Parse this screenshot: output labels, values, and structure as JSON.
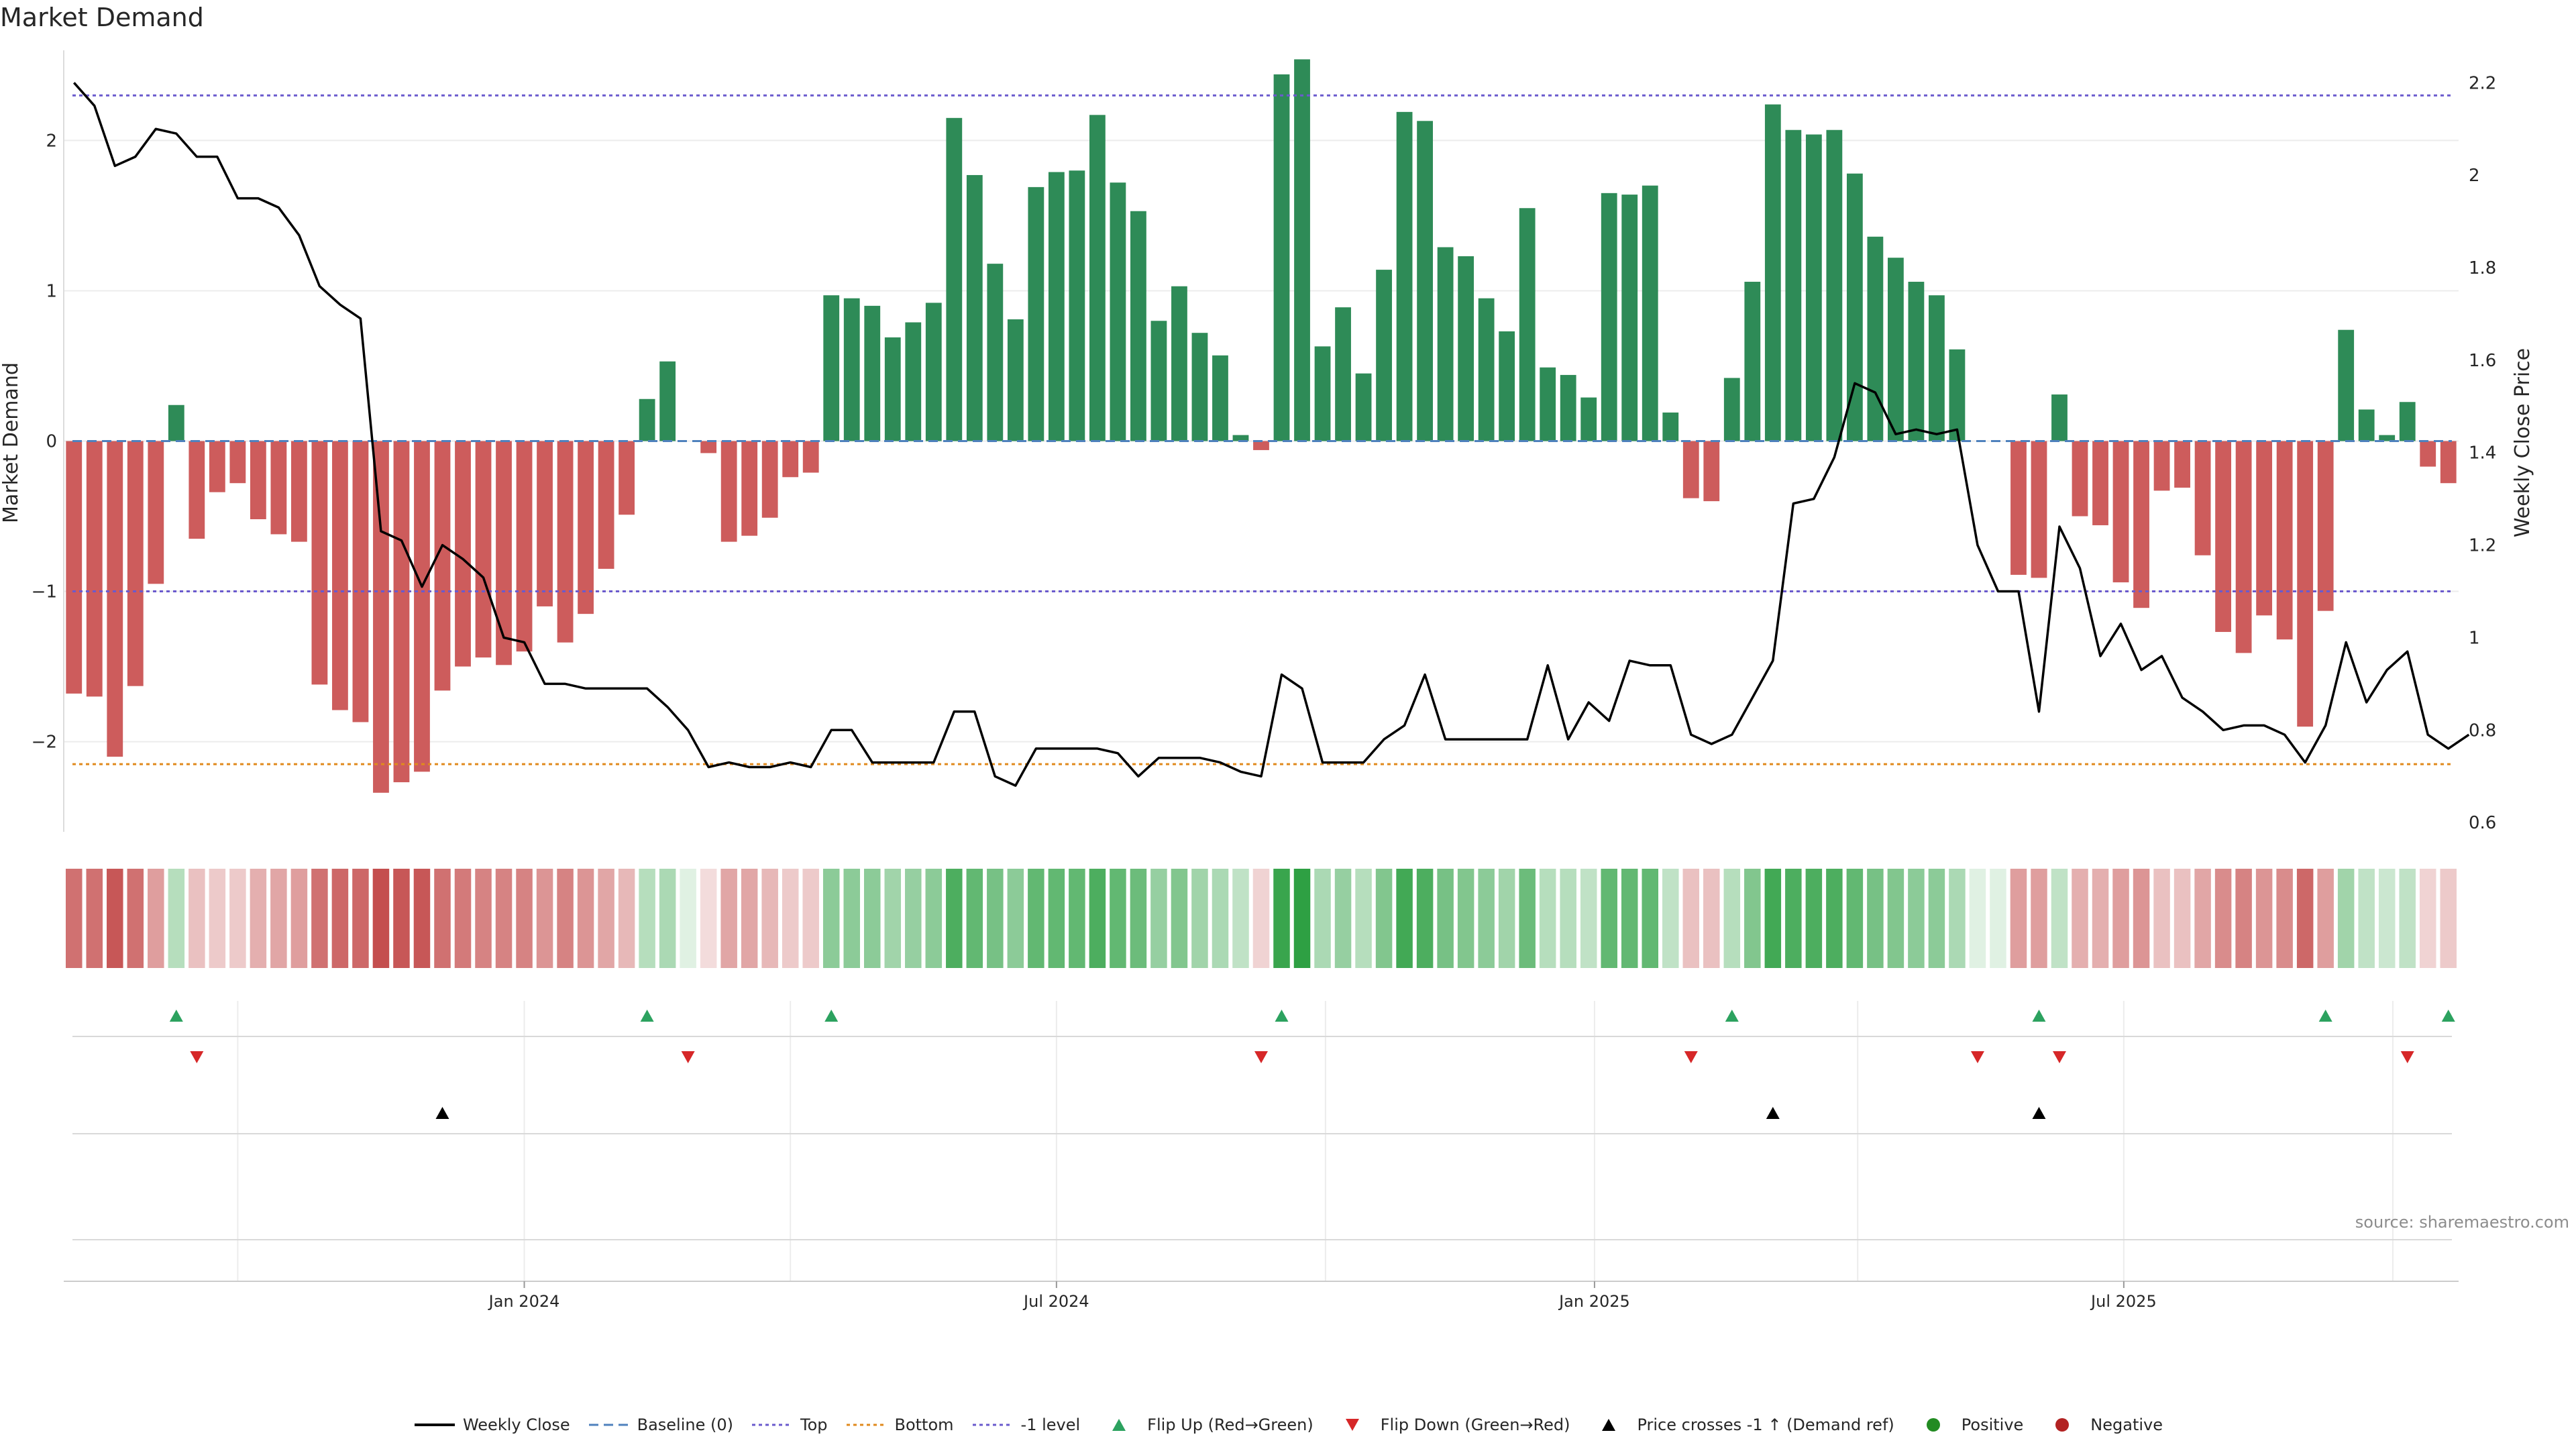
{
  "title": "Market Demand",
  "source": "source: sharemaestro.com",
  "colors": {
    "positive": "#2e8b57",
    "negative": "#cd5c5c",
    "price": "#000000",
    "baseline": "#4f81bd",
    "top": "#6a5acd",
    "bottom": "#e08a1e",
    "minus_one": "#6a5acd",
    "flip_up": "#2ca25f",
    "flip_down": "#d62728",
    "cross": "#000000",
    "positive_dot": "#228b22",
    "negative_dot": "#b22222"
  },
  "legend": [
    {
      "label": "Weekly Close",
      "symbol": "line",
      "color": "#000000"
    },
    {
      "label": "Baseline (0)",
      "symbol": "dash",
      "color": "#4f81bd"
    },
    {
      "label": "Top",
      "symbol": "dot",
      "color": "#6a5acd"
    },
    {
      "label": "Bottom",
      "symbol": "dot",
      "color": "#e08a1e"
    },
    {
      "label": "-1 level",
      "symbol": "dot",
      "color": "#6a5acd"
    },
    {
      "label": "Flip Up (Red→Green)",
      "symbol": "tri-up",
      "color": "#2ca25f"
    },
    {
      "label": "Flip Down (Green→Red)",
      "symbol": "tri-down",
      "color": "#d62728"
    },
    {
      "label": "Price crosses -1 ↑ (Demand ref)",
      "symbol": "tri-up",
      "color": "#000000"
    },
    {
      "label": "Positive",
      "symbol": "circle",
      "color": "#228b22"
    },
    {
      "label": "Negative",
      "symbol": "circle",
      "color": "#b22222"
    }
  ],
  "chart_data": {
    "type": "bar",
    "ylabel": "Market Demand",
    "y2label": "Weekly Close Price",
    "ylim": [
      -2.6,
      2.6
    ],
    "y2lim": [
      0.58,
      2.27
    ],
    "yticks": [
      "−2",
      "−1",
      "0",
      "1",
      "2"
    ],
    "y2ticks": [
      "0.6",
      "0.8",
      "1",
      "1.2",
      "1.4",
      "1.6",
      "1.8",
      "2",
      "2.2"
    ],
    "xticks": [
      {
        "label": "Jan 2024",
        "date": "2024-01-01"
      },
      {
        "label": "Jul 2024",
        "date": "2024-07-01"
      },
      {
        "label": "Jan 2025",
        "date": "2025-01-01"
      },
      {
        "label": "Jul 2025",
        "date": "2025-07-01"
      }
    ],
    "weeks_start": "2023-07-31",
    "levels": {
      "top": 2.3,
      "bottom": -2.15,
      "minus_one": -1.0,
      "baseline": 0
    },
    "demand": [
      -1.68,
      -1.7,
      -2.1,
      -1.63,
      -0.95,
      0.24,
      -0.65,
      -0.34,
      -0.28,
      -0.52,
      -0.62,
      -0.67,
      -1.62,
      -1.79,
      -1.87,
      -2.34,
      -2.27,
      -2.2,
      -1.66,
      -1.5,
      -1.44,
      -1.49,
      -1.4,
      -1.1,
      -1.34,
      -1.15,
      -0.85,
      -0.49,
      0.28,
      0.53,
      0.0,
      -0.08,
      -0.67,
      -0.63,
      -0.51,
      -0.24,
      -0.21,
      0.97,
      0.95,
      0.9,
      0.69,
      0.79,
      0.92,
      2.15,
      1.77,
      1.18,
      0.81,
      1.69,
      1.79,
      1.8,
      2.17,
      1.72,
      1.53,
      0.8,
      1.03,
      0.72,
      0.57,
      0.04,
      -0.06,
      2.44,
      2.54,
      0.63,
      0.89,
      0.45,
      1.14,
      2.19,
      2.13,
      1.29,
      1.23,
      0.95,
      0.73,
      1.55,
      0.49,
      0.44,
      0.29,
      1.65,
      1.64,
      1.7,
      0.19,
      -0.38,
      -0.4,
      0.42,
      1.06,
      2.24,
      2.07,
      2.04,
      2.07,
      1.78,
      1.36,
      1.22,
      1.06,
      0.97,
      0.61,
      0.0,
      0.0,
      -0.89,
      -0.91,
      0.31,
      -0.5,
      -0.56,
      -0.94,
      -1.11,
      -0.33,
      -0.31,
      -0.76,
      -1.27,
      -1.41,
      -1.16,
      -1.32,
      -1.9,
      -1.13,
      0.74,
      0.21,
      0.04,
      0.26,
      -0.17,
      -0.28
    ],
    "price": [
      2.2,
      2.15,
      2.02,
      2.04,
      2.1,
      2.09,
      2.04,
      2.04,
      1.95,
      1.95,
      1.93,
      1.87,
      1.76,
      1.72,
      1.69,
      1.23,
      1.21,
      1.11,
      1.2,
      1.17,
      1.13,
      1.0,
      0.99,
      0.9,
      0.9,
      0.89,
      0.89,
      0.89,
      0.89,
      0.85,
      0.8,
      0.72,
      0.73,
      0.72,
      0.72,
      0.73,
      0.72,
      0.8,
      0.8,
      0.73,
      0.73,
      0.73,
      0.73,
      0.84,
      0.84,
      0.7,
      0.68,
      0.76,
      0.76,
      0.76,
      0.76,
      0.75,
      0.7,
      0.74,
      0.74,
      0.74,
      0.73,
      0.71,
      0.7,
      0.92,
      0.89,
      0.73,
      0.73,
      0.73,
      0.78,
      0.81,
      0.92,
      0.78,
      0.78,
      0.78,
      0.78,
      0.78,
      0.94,
      0.78,
      0.86,
      0.82,
      0.95,
      0.94,
      0.94,
      0.79,
      0.77,
      0.79,
      0.87,
      0.95,
      1.29,
      1.3,
      1.39,
      1.55,
      1.53,
      1.44,
      1.45,
      1.44,
      1.45,
      1.2,
      1.1,
      1.1,
      0.84,
      1.24,
      1.15,
      0.96,
      1.03,
      0.93,
      0.96,
      0.87,
      0.84,
      0.8,
      0.81,
      0.81,
      0.79,
      0.73,
      0.81,
      0.99,
      0.86,
      0.93,
      0.97,
      0.79,
      0.76,
      0.79
    ],
    "flip_up_weeks": [
      5,
      28,
      37,
      59,
      81,
      96,
      110,
      116
    ],
    "flip_down_weeks": [
      6,
      30,
      58,
      79,
      93,
      97,
      114
    ],
    "cross_weeks": [
      18,
      83,
      96
    ],
    "heat_intensity": [
      0.8,
      0.8,
      0.95,
      0.8,
      0.55,
      0.35,
      0.35,
      0.3,
      0.3,
      0.45,
      0.5,
      0.55,
      0.8,
      0.85,
      0.85,
      1.0,
      0.95,
      0.95,
      0.8,
      0.75,
      0.7,
      0.7,
      0.7,
      0.6,
      0.7,
      0.6,
      0.5,
      0.4,
      0.35,
      0.4,
      0.1,
      0.2,
      0.5,
      0.5,
      0.4,
      0.3,
      0.3,
      0.55,
      0.55,
      0.55,
      0.45,
      0.5,
      0.55,
      0.85,
      0.75,
      0.65,
      0.55,
      0.75,
      0.75,
      0.75,
      0.85,
      0.75,
      0.7,
      0.5,
      0.6,
      0.45,
      0.4,
      0.3,
      0.25,
      0.95,
      1.0,
      0.4,
      0.5,
      0.35,
      0.6,
      0.9,
      0.85,
      0.65,
      0.6,
      0.55,
      0.45,
      0.7,
      0.35,
      0.35,
      0.3,
      0.75,
      0.75,
      0.75,
      0.3,
      0.35,
      0.35,
      0.35,
      0.6,
      0.9,
      0.85,
      0.85,
      0.85,
      0.75,
      0.65,
      0.6,
      0.55,
      0.55,
      0.4,
      0.15,
      0.15,
      0.55,
      0.55,
      0.3,
      0.45,
      0.45,
      0.55,
      0.6,
      0.35,
      0.35,
      0.5,
      0.65,
      0.7,
      0.6,
      0.65,
      0.85,
      0.55,
      0.45,
      0.3,
      0.25,
      0.3,
      0.25,
      0.3
    ]
  }
}
